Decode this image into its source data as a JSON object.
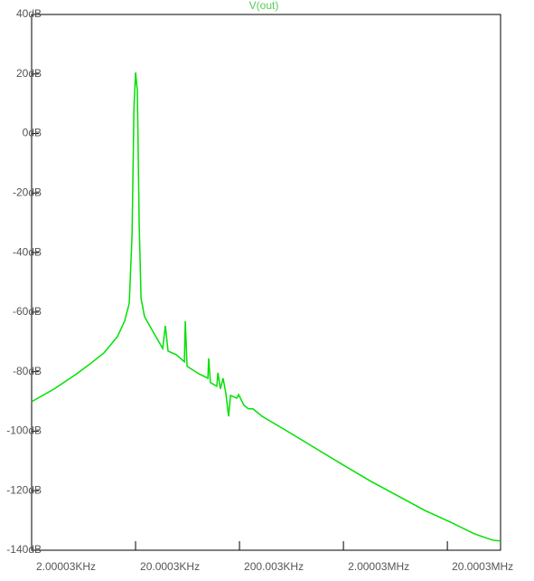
{
  "chart_data": {
    "type": "line",
    "title": "V(out)",
    "log_x": true,
    "color": "#00e000",
    "xlim": [
      2000.03,
      65000000
    ],
    "xticks": [
      {
        "value": 2000.03,
        "label": "2.00003KHz"
      },
      {
        "value": 20000.3,
        "label": "20.0003KHz"
      },
      {
        "value": 200003,
        "label": "200.003KHz"
      },
      {
        "value": 2000030,
        "label": "2.00003MHz"
      },
      {
        "value": 20000300,
        "label": "20.0003MHz"
      }
    ],
    "ylim": [
      -140,
      40
    ],
    "yticks": [
      {
        "value": 40,
        "label": "40dB"
      },
      {
        "value": 20,
        "label": "20dB"
      },
      {
        "value": 0,
        "label": "0dB"
      },
      {
        "value": -20,
        "label": "-20dB"
      },
      {
        "value": -40,
        "label": "-40dB"
      },
      {
        "value": -60,
        "label": "-60dB"
      },
      {
        "value": -80,
        "label": "-80dB"
      },
      {
        "value": -100,
        "label": "-100dB"
      },
      {
        "value": -120,
        "label": "-120dB"
      },
      {
        "value": -140,
        "label": "-140dB"
      }
    ],
    "x": [
      2000,
      3300,
      5440,
      7350,
      9930,
      13400,
      15700,
      17400,
      18500,
      19300,
      20000,
      20800,
      21700,
      22600,
      24400,
      29900,
      36500,
      38700,
      41100,
      49200,
      59000,
      60200,
      62600,
      81200,
      99300,
      101000,
      105000,
      121000,
      124000,
      131000,
      139000,
      148000,
      157000,
      164000,
      188000,
      196000,
      221000,
      244000,
      270000,
      330000,
      602000,
      1096000,
      2000000,
      3650000,
      6650000,
      12100000,
      22100000,
      36500000,
      54400000,
      65000000
    ],
    "values": [
      -90.1,
      -85.8,
      -80.7,
      -77.3,
      -73.7,
      -68.2,
      -63.0,
      -57.0,
      -34.2,
      8.4,
      20.5,
      14.5,
      -31.1,
      -55.4,
      -61.5,
      -67.0,
      -72.2,
      -64.6,
      -73.1,
      -74.3,
      -76.7,
      -63.0,
      -78.2,
      -80.7,
      -82.2,
      -75.5,
      -83.7,
      -84.9,
      -80.4,
      -85.8,
      -82.2,
      -87.4,
      -95.0,
      -88.0,
      -88.9,
      -87.7,
      -91.3,
      -92.5,
      -92.5,
      -95.0,
      -100.4,
      -105.9,
      -111.4,
      -116.8,
      -121.7,
      -126.6,
      -130.8,
      -134.5,
      -136.6,
      -136.9
    ]
  }
}
